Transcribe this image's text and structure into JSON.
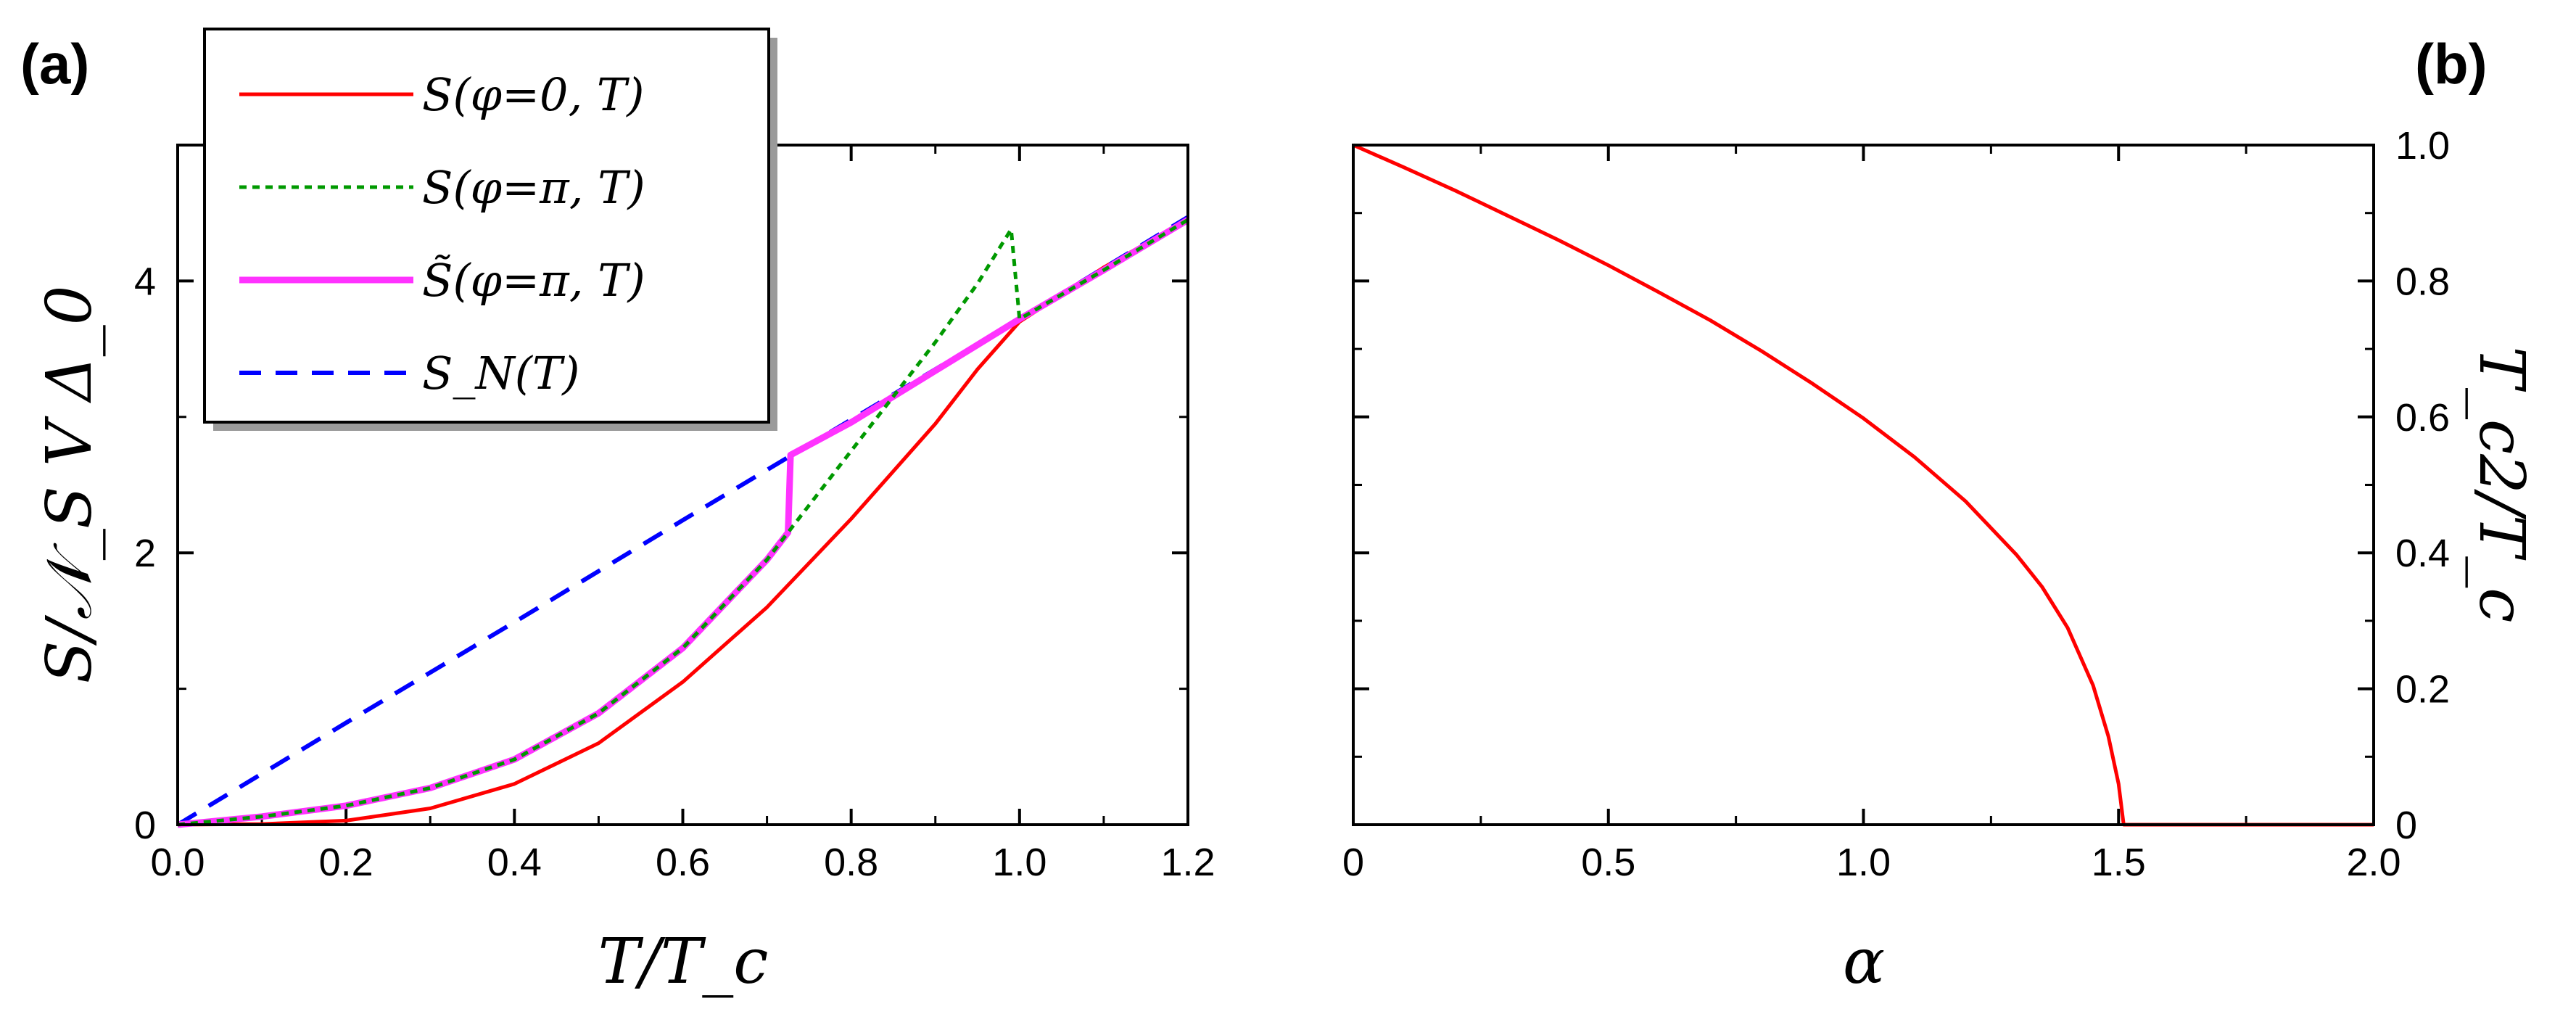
{
  "panels": {
    "a": {
      "label": "(a)"
    },
    "b": {
      "label": "(b)"
    }
  },
  "chart_data": [
    {
      "type": "line",
      "panel": "(a)",
      "xlabel": "T/T_c",
      "ylabel": "S/𝒩_S V Δ_0",
      "xlim": [
        0,
        1.2
      ],
      "ylim": [
        0,
        5
      ],
      "xticks": [
        "0.0",
        "0.2",
        "0.4",
        "0.6",
        "0.8",
        "1.0",
        "1.2"
      ],
      "xtick_values": [
        0,
        0.2,
        0.4,
        0.6,
        0.8,
        1.0,
        1.2
      ],
      "yticks": [
        "0",
        "2",
        "4"
      ],
      "ytick_values": [
        0,
        2,
        4
      ],
      "legend_position": "top-left",
      "series": [
        {
          "name": "S(φ=0, T)",
          "color": "#ff0000",
          "style": "solid",
          "x": [
            0,
            0.1,
            0.2,
            0.3,
            0.4,
            0.5,
            0.6,
            0.7,
            0.8,
            0.9,
            0.95,
            1.0,
            1.1,
            1.2
          ],
          "y": [
            0,
            0.005,
            0.03,
            0.12,
            0.3,
            0.6,
            1.05,
            1.6,
            2.25,
            2.95,
            3.35,
            3.7,
            4.1,
            4.45
          ]
        },
        {
          "name": "S(φ=π, T)",
          "color": "#009900",
          "style": "dotted",
          "x": [
            0,
            0.1,
            0.2,
            0.3,
            0.4,
            0.5,
            0.6,
            0.7,
            0.725,
            0.8,
            0.9,
            0.95,
            0.99,
            1.0,
            1.1,
            1.2
          ],
          "y": [
            0,
            0.06,
            0.14,
            0.27,
            0.48,
            0.82,
            1.3,
            1.95,
            2.15,
            2.75,
            3.55,
            3.98,
            4.38,
            3.72,
            4.08,
            4.45
          ]
        },
        {
          "name": "S̃(φ=π, T)",
          "color": "#ff33ff",
          "style": "solid-thick",
          "x": [
            0,
            0.1,
            0.2,
            0.3,
            0.4,
            0.5,
            0.6,
            0.7,
            0.725,
            0.728,
            0.8,
            0.9,
            1.0,
            1.1,
            1.2
          ],
          "y": [
            0,
            0.06,
            0.14,
            0.27,
            0.48,
            0.82,
            1.3,
            1.95,
            2.15,
            2.72,
            2.96,
            3.34,
            3.72,
            4.08,
            4.45
          ]
        },
        {
          "name": "S_N(T)",
          "color": "#0000ff",
          "style": "dashed",
          "x": [
            0,
            0.2,
            0.4,
            0.6,
            0.8,
            1.0,
            1.2
          ],
          "y": [
            0,
            0.75,
            1.49,
            2.24,
            2.98,
            3.72,
            4.47
          ]
        }
      ]
    },
    {
      "type": "line",
      "panel": "(b)",
      "xlabel": "α",
      "ylabel": "T_c2/T_c",
      "xlim": [
        0,
        2.0
      ],
      "ylim": [
        0,
        1.0
      ],
      "xticks": [
        "0",
        "0.5",
        "1.0",
        "1.5",
        "2.0"
      ],
      "xtick_values": [
        0,
        0.5,
        1.0,
        1.5,
        2.0
      ],
      "yticks": [
        "0",
        "0.2",
        "0.4",
        "0.6",
        "0.8",
        "1.0"
      ],
      "ytick_values": [
        0,
        0.2,
        0.4,
        0.6,
        0.8,
        1.0
      ],
      "series": [
        {
          "color": "#ff0000",
          "style": "solid",
          "x": [
            0,
            0.1,
            0.2,
            0.3,
            0.4,
            0.5,
            0.6,
            0.7,
            0.8,
            0.9,
            1.0,
            1.1,
            1.2,
            1.3,
            1.35,
            1.4,
            1.45,
            1.48,
            1.5,
            1.51,
            1.6,
            1.8,
            2.0
          ],
          "y": [
            1.0,
            0.967,
            0.933,
            0.897,
            0.861,
            0.823,
            0.783,
            0.742,
            0.697,
            0.649,
            0.598,
            0.541,
            0.476,
            0.397,
            0.35,
            0.29,
            0.205,
            0.13,
            0.06,
            0.0,
            0.0,
            0.0,
            0.0
          ]
        }
      ]
    }
  ]
}
